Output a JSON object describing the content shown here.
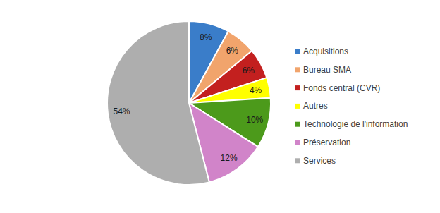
{
  "chart_data": {
    "type": "pie",
    "categories": [
      "Acquisitions",
      "Bureau SMA",
      "Fonds central (CVR)",
      "Autres",
      "Technologie de l'information",
      "Préservation",
      "Services"
    ],
    "values": [
      8,
      6,
      6,
      4,
      10,
      12,
      54
    ],
    "value_labels": [
      "8%",
      "6%",
      "6%",
      "4%",
      "10%",
      "12%",
      "54%"
    ],
    "colors": [
      "#3a7dc9",
      "#f1a46c",
      "#c3201f",
      "#ffff00",
      "#4c9a1b",
      "#d184c9",
      "#aeaeae"
    ],
    "data_labels": true,
    "legend": "right"
  }
}
